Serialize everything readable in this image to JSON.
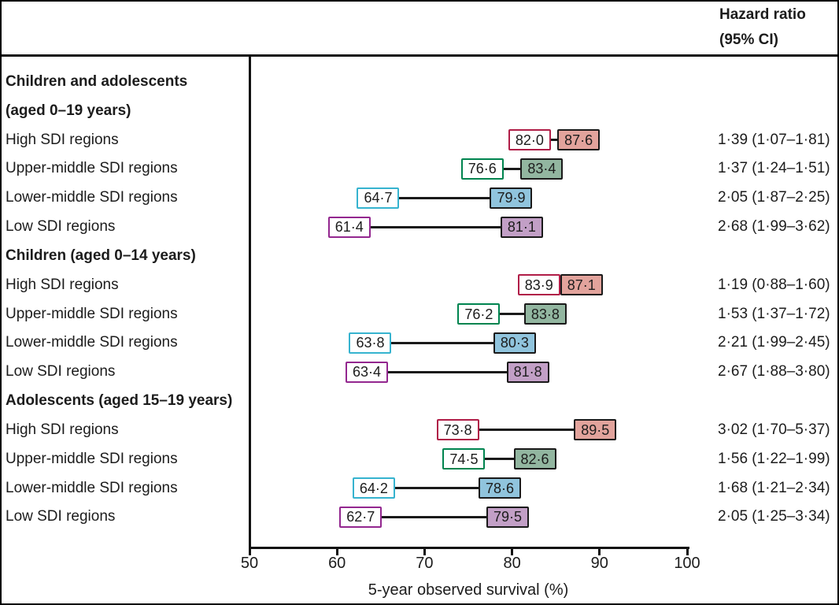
{
  "header": {
    "column_title_lines": [
      "Hazard ratio",
      "(95% CI)"
    ]
  },
  "chart_data": {
    "type": "dumbbell",
    "title": "",
    "xlabel": "5-year observed survival (%)",
    "xlim": [
      50,
      100
    ],
    "xticks": [
      "50",
      "60",
      "70",
      "80",
      "90",
      "100"
    ],
    "grid": false,
    "value_column_header": "Hazard ratio (95% CI)",
    "colors": {
      "high": {
        "border": "#b01d47",
        "fill": "#e2a39c"
      },
      "upper_middle": {
        "border": "#00844f",
        "fill": "#92b6a0"
      },
      "lower_middle": {
        "border": "#36b3cf",
        "fill": "#90c4dd"
      },
      "low": {
        "border": "#93278f",
        "fill": "#c29fc6"
      },
      "filled_box_border": "#1a1a1a",
      "connector": "#1a1a1a"
    },
    "groups": [
      {
        "header_lines": [
          "Children and adolescents",
          "(aged 0–19 years)"
        ],
        "rows": [
          {
            "label": "High SDI regions",
            "color": "high",
            "start": 82.0,
            "end": 87.6,
            "start_label": "82·0",
            "end_label": "87·6",
            "hazard_ratio": "1·39 (1·07–1·81)"
          },
          {
            "label": "Upper-middle SDI regions",
            "color": "upper_middle",
            "start": 76.6,
            "end": 83.4,
            "start_label": "76·6",
            "end_label": "83·4",
            "hazard_ratio": "1·37 (1·24–1·51)"
          },
          {
            "label": "Lower-middle SDI regions",
            "color": "lower_middle",
            "start": 64.7,
            "end": 79.9,
            "start_label": "64·7",
            "end_label": "79·9",
            "hazard_ratio": "2·05 (1·87–2·25)"
          },
          {
            "label": "Low SDI regions",
            "color": "low",
            "start": 61.4,
            "end": 81.1,
            "start_label": "61·4",
            "end_label": "81·1",
            "hazard_ratio": "2·68 (1·99–3·62)"
          }
        ]
      },
      {
        "header_lines": [
          "Children (aged 0–14 years)"
        ],
        "rows": [
          {
            "label": "High SDI regions",
            "color": "high",
            "start": 83.9,
            "end": 87.1,
            "start_label": "83·9",
            "end_label": "87·1",
            "hazard_ratio": "1·19 (0·88–1·60)"
          },
          {
            "label": "Upper-middle SDI regions",
            "color": "upper_middle",
            "start": 76.2,
            "end": 83.8,
            "start_label": "76·2",
            "end_label": "83·8",
            "hazard_ratio": "1·53 (1·37–1·72)"
          },
          {
            "label": "Lower-middle SDI regions",
            "color": "lower_middle",
            "start": 63.8,
            "end": 80.3,
            "start_label": "63·8",
            "end_label": "80·3",
            "hazard_ratio": "2·21 (1·99–2·45)"
          },
          {
            "label": "Low SDI regions",
            "color": "low",
            "start": 63.4,
            "end": 81.8,
            "start_label": "63·4",
            "end_label": "81·8",
            "hazard_ratio": "2·67 (1·88–3·80)"
          }
        ]
      },
      {
        "header_lines": [
          "Adolescents (aged 15–19 years)"
        ],
        "rows": [
          {
            "label": "High SDI regions",
            "color": "high",
            "start": 73.8,
            "end": 89.5,
            "start_label": "73·8",
            "end_label": "89·5",
            "hazard_ratio": "3·02 (1·70–5·37)"
          },
          {
            "label": "Upper-middle SDI regions",
            "color": "upper_middle",
            "start": 74.5,
            "end": 82.6,
            "start_label": "74·5",
            "end_label": "82·6",
            "hazard_ratio": "1·56 (1·22–1·99)"
          },
          {
            "label": "Lower-middle SDI regions",
            "color": "lower_middle",
            "start": 64.2,
            "end": 78.6,
            "start_label": "64·2",
            "end_label": "78·6",
            "hazard_ratio": "1·68 (1·21–2·34)"
          },
          {
            "label": "Low SDI regions",
            "color": "low",
            "start": 62.7,
            "end": 79.5,
            "start_label": "62·7",
            "end_label": "79·5",
            "hazard_ratio": "2·05 (1·25–3·34)"
          }
        ]
      }
    ]
  }
}
